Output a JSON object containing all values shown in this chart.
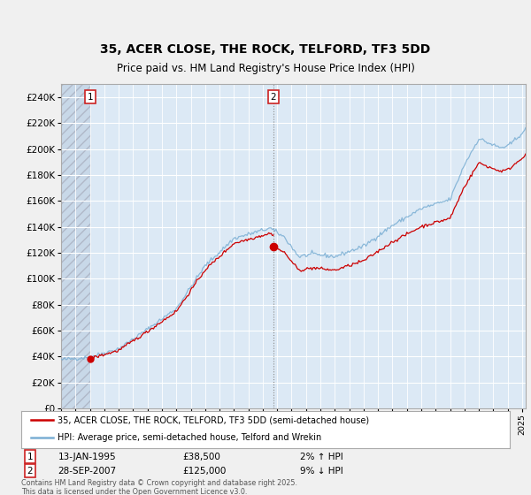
{
  "title": "35, ACER CLOSE, THE ROCK, TELFORD, TF3 5DD",
  "subtitle": "Price paid vs. HM Land Registry's House Price Index (HPI)",
  "ylim": [
    0,
    250000
  ],
  "yticks": [
    0,
    20000,
    40000,
    60000,
    80000,
    100000,
    120000,
    140000,
    160000,
    180000,
    200000,
    220000,
    240000
  ],
  "line1_color": "#cc0000",
  "line2_color": "#7bafd4",
  "legend_label1": "35, ACER CLOSE, THE ROCK, TELFORD, TF3 5DD (semi-detached house)",
  "legend_label2": "HPI: Average price, semi-detached house, Telford and Wrekin",
  "sale1_date": "13-JAN-1995",
  "sale1_price": 38500,
  "sale1_hpi": "2% ↑ HPI",
  "sale2_date": "28-SEP-2007",
  "sale2_price": 125000,
  "sale2_hpi": "9% ↓ HPI",
  "footnote": "Contains HM Land Registry data © Crown copyright and database right 2025.\nThis data is licensed under the Open Government Licence v3.0.",
  "background_color": "#f0f0f0",
  "plot_bg_color": "#dce9f5",
  "hatch_color": "#b0b8c8",
  "grid_color": "#ffffff",
  "sale1_x": 1995.04,
  "sale2_x": 2007.74,
  "xstart": 1993.0,
  "xend": 2025.25
}
